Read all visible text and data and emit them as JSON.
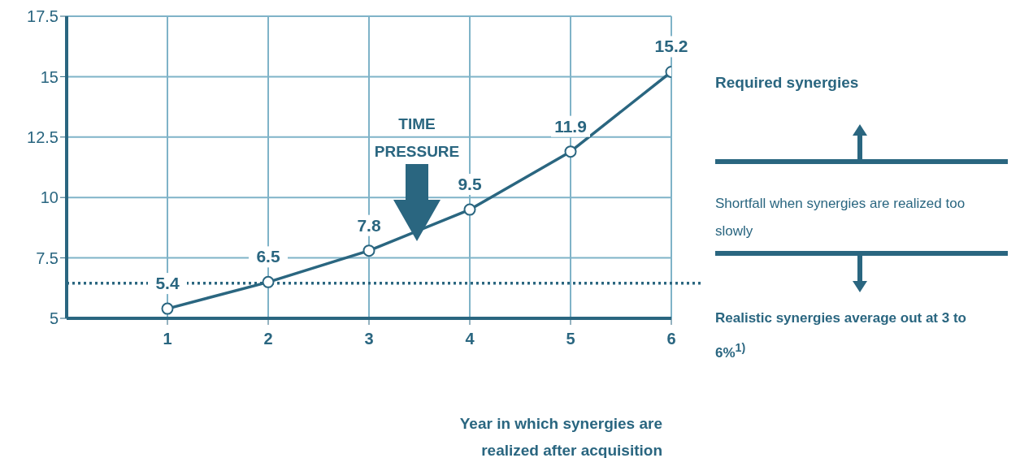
{
  "chart_data": {
    "type": "line",
    "x": [
      1,
      2,
      3,
      4,
      5,
      6
    ],
    "series": [
      {
        "color": "#2a6680",
        "values": [
          5.4,
          6.5,
          7.8,
          9.5,
          11.9,
          15.2
        ]
      }
    ],
    "xlim": [
      0,
      6
    ],
    "xticks": [
      1,
      2,
      3,
      4,
      5,
      6
    ],
    "ylim": [
      5,
      17.5
    ],
    "yticks": [
      5,
      7.5,
      10,
      12.5,
      15,
      17.5
    ],
    "xlabel": "Year in which synergies are realized after acquisition",
    "grid": true,
    "marker": "circle",
    "line_style": "solid",
    "data_labels": true,
    "ref_lines": [
      {
        "axis": "y",
        "value": 6.45,
        "label": "Realistic synergies average out at 3 to 6%$^{1)}$",
        "line_style": "dotted",
        "color": "#2a6680"
      }
    ],
    "annotations": [
      "TIME PRESSURE",
      "Required synergies",
      "Shortfall when synergies are realized too slowly"
    ]
  }
}
